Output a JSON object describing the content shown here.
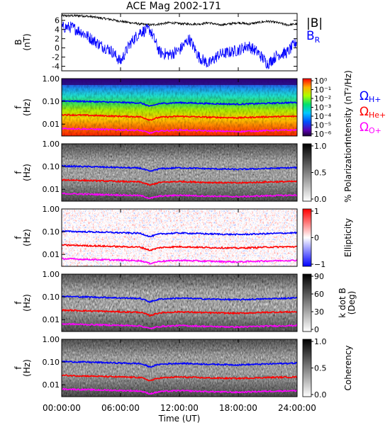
{
  "title": "ACE Mag 2002-171",
  "x_axis": {
    "label": "Time (UT)",
    "range": [
      0,
      24
    ],
    "ticks": [
      {
        "value": 0,
        "label": "00:00:00"
      },
      {
        "value": 6,
        "label": "06:00:00"
      },
      {
        "value": 12,
        "label": "12:00:00"
      },
      {
        "value": 18,
        "label": "18:00:00"
      },
      {
        "value": 24,
        "label": "24:00:00"
      }
    ]
  },
  "colors": {
    "B": "#000000",
    "BR": "#0000ff",
    "H": "#0000ff",
    "He": "#ff0000",
    "O": "#ff00ff"
  },
  "chart_data": [
    {
      "type": "line",
      "panel": "field",
      "ylabel_line1": "B",
      "ylabel_line2": "(nT)",
      "ylim": [
        -5,
        7.5
      ],
      "yticks": [
        6,
        4,
        2,
        0,
        -2,
        -4
      ],
      "legend": [
        {
          "label": "|B|",
          "color": "#000000"
        },
        {
          "label": "B",
          "sub": "R",
          "color": "#0000ff"
        }
      ],
      "series": [
        {
          "name": "|B|",
          "color": "#000000",
          "x": [
            0,
            1,
            2,
            3,
            4,
            5,
            6,
            7,
            8,
            9,
            10,
            11,
            12,
            13,
            14,
            15,
            16,
            17,
            18,
            19,
            20,
            21,
            22,
            23,
            24
          ],
          "y": [
            7.0,
            7.0,
            7.0,
            6.8,
            6.5,
            6.2,
            5.8,
            5.5,
            5.2,
            5.0,
            5.2,
            5.5,
            5.3,
            5.2,
            5.2,
            5.5,
            5.0,
            5.2,
            5.5,
            5.2,
            5.5,
            5.8,
            5.5,
            5.0,
            5.2
          ]
        },
        {
          "name": "B_R",
          "color": "#0000ff",
          "x": [
            0,
            1,
            2,
            3,
            4,
            5,
            6,
            7,
            8,
            9,
            10,
            11,
            12,
            13,
            14,
            15,
            16,
            17,
            18,
            19,
            20,
            21,
            22,
            23,
            24
          ],
          "y": [
            4.5,
            4.5,
            3.5,
            2.0,
            0.5,
            -0.5,
            -3.0,
            1.0,
            3.5,
            4.0,
            -1.0,
            -1.5,
            -0.5,
            2.0,
            -2.0,
            -3.5,
            -1.5,
            -1.0,
            -0.5,
            0.5,
            -1.0,
            -3.5,
            -1.5,
            -1.0,
            1.5
          ]
        }
      ]
    },
    {
      "type": "heatmap",
      "panel": "intensity",
      "ylabel_line1": "f",
      "ylabel_line2": "(Hz)",
      "log_y": true,
      "ylim": [
        0.003,
        1.0
      ],
      "yticks": [
        {
          "value": 1.0,
          "label": "1.00"
        },
        {
          "value": 0.1,
          "label": "0.10"
        },
        {
          "value": 0.01,
          "label": "0.01"
        }
      ],
      "colorbar": {
        "label": "Intensity (nT²/Hz)",
        "ticks": [
          "10⁰",
          "10⁻¹",
          "10⁻²",
          "10⁻³",
          "10⁻⁴",
          "10⁻⁵",
          "10⁻⁶"
        ]
      },
      "gyro_legend": [
        {
          "sym": "Ω",
          "sub": "H+",
          "color": "#0000ff"
        },
        {
          "sym": "Ω",
          "sub": "He+",
          "color": "#ff0000"
        },
        {
          "sym": "Ω",
          "sub": "O+",
          "color": "#ff00ff"
        }
      ]
    },
    {
      "type": "heatmap",
      "panel": "polarization",
      "ylabel_line1": "f",
      "ylabel_line2": "(Hz)",
      "log_y": true,
      "ylim": [
        0.003,
        1.0
      ],
      "yticks": [
        {
          "value": 1.0,
          "label": "1.00"
        },
        {
          "value": 0.1,
          "label": "0.10"
        },
        {
          "value": 0.01,
          "label": "0.01"
        }
      ],
      "colorbar": {
        "label": "% Polarization",
        "ticks": [
          "1.0",
          "0.5",
          "0.0"
        ]
      }
    },
    {
      "type": "heatmap",
      "panel": "ellipticity",
      "ylabel_line1": "f",
      "ylabel_line2": "(Hz)",
      "log_y": true,
      "ylim": [
        0.003,
        1.0
      ],
      "yticks": [
        {
          "value": 1.0,
          "label": "1.00"
        },
        {
          "value": 0.1,
          "label": "0.10"
        },
        {
          "value": 0.01,
          "label": "0.01"
        }
      ],
      "colorbar": {
        "label": "Ellipticity",
        "ticks": [
          "1",
          "0",
          "−1"
        ]
      }
    },
    {
      "type": "heatmap",
      "panel": "kdotb",
      "ylabel_line1": "f",
      "ylabel_line2": "(Hz)",
      "log_y": true,
      "ylim": [
        0.003,
        1.0
      ],
      "yticks": [
        {
          "value": 1.0,
          "label": "1.00"
        },
        {
          "value": 0.1,
          "label": "0.10"
        },
        {
          "value": 0.01,
          "label": "0.01"
        }
      ],
      "colorbar": {
        "label_line1": "k dot B",
        "label_line2": "(Deg)",
        "ticks": [
          "90",
          "60",
          "30",
          "0"
        ]
      }
    },
    {
      "type": "heatmap",
      "panel": "coherency",
      "ylabel_line1": "f",
      "ylabel_line2": "(Hz)",
      "log_y": true,
      "ylim": [
        0.003,
        1.0
      ],
      "yticks": [
        {
          "value": 1.0,
          "label": "1.00"
        },
        {
          "value": 0.1,
          "label": "0.10"
        },
        {
          "value": 0.01,
          "label": "0.01"
        }
      ],
      "colorbar": {
        "label": "Coherency",
        "ticks": [
          "1.0",
          "0.5",
          "0.0"
        ]
      }
    }
  ],
  "gyrofrequency_lines": [
    {
      "name": "H+",
      "color": "#0000ff",
      "x": [
        0,
        3,
        6,
        8,
        9,
        10,
        12,
        15,
        18,
        21,
        24
      ],
      "y": [
        0.105,
        0.098,
        0.09,
        0.085,
        0.06,
        0.08,
        0.088,
        0.08,
        0.075,
        0.082,
        0.09
      ]
    },
    {
      "name": "He+",
      "color": "#ff0000",
      "x": [
        0,
        3,
        6,
        8,
        9,
        10,
        12,
        15,
        18,
        21,
        24
      ],
      "y": [
        0.026,
        0.024,
        0.022,
        0.021,
        0.015,
        0.02,
        0.022,
        0.02,
        0.019,
        0.021,
        0.022
      ]
    },
    {
      "name": "O+",
      "color": "#ff00ff",
      "x": [
        0,
        3,
        6,
        8,
        9,
        10,
        12,
        15,
        18,
        21,
        24
      ],
      "y": [
        0.0065,
        0.006,
        0.0056,
        0.0053,
        0.004,
        0.005,
        0.0055,
        0.005,
        0.0047,
        0.0052,
        0.0055
      ]
    }
  ]
}
